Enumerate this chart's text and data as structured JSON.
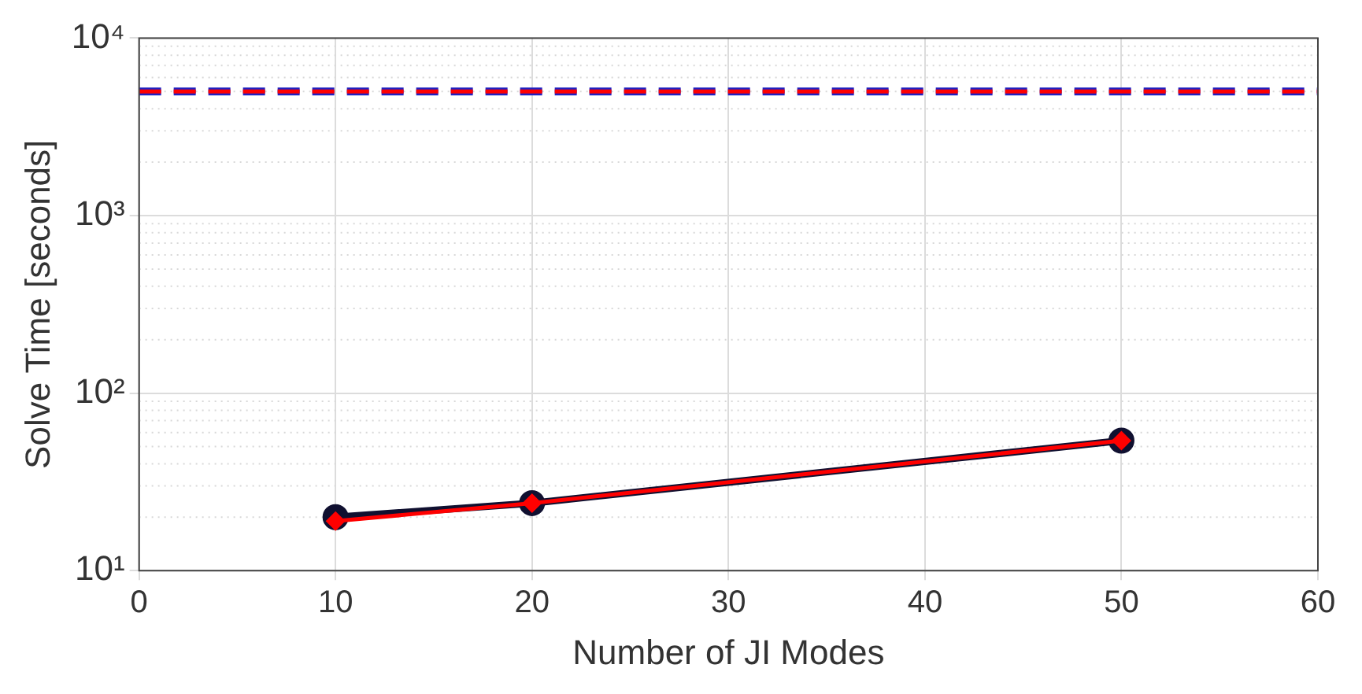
{
  "chart_data": {
    "type": "line",
    "xlabel": "Number of JI Modes",
    "ylabel": "Solve Time [seconds]",
    "x": [
      10,
      20,
      50
    ],
    "series": [
      {
        "color": "#101030",
        "values": [
          20,
          24,
          54
        ],
        "marker": "circle"
      },
      {
        "color": "#ff0000",
        "values": [
          19,
          24,
          54
        ],
        "marker": "diamond"
      }
    ],
    "xlim": [
      0,
      60
    ],
    "xticks": [
      0,
      10,
      20,
      30,
      40,
      50,
      60
    ],
    "ylim": [
      10,
      10000
    ],
    "yticks": [
      {
        "value": 10,
        "label": "10¹"
      },
      {
        "value": 100,
        "label": "10²"
      },
      {
        "value": 1000,
        "label": "10³"
      },
      {
        "value": 10000,
        "label": "10⁴"
      }
    ],
    "log": "y",
    "grid": true,
    "legend": false,
    "line_style": "solid",
    "ref_lines": [
      {
        "axis": "y",
        "value": 5000,
        "color": "#2020c0",
        "line_style": "dashed"
      },
      {
        "axis": "y",
        "value": 5000,
        "color": "#ff0000",
        "line_style": "dashed"
      }
    ]
  }
}
